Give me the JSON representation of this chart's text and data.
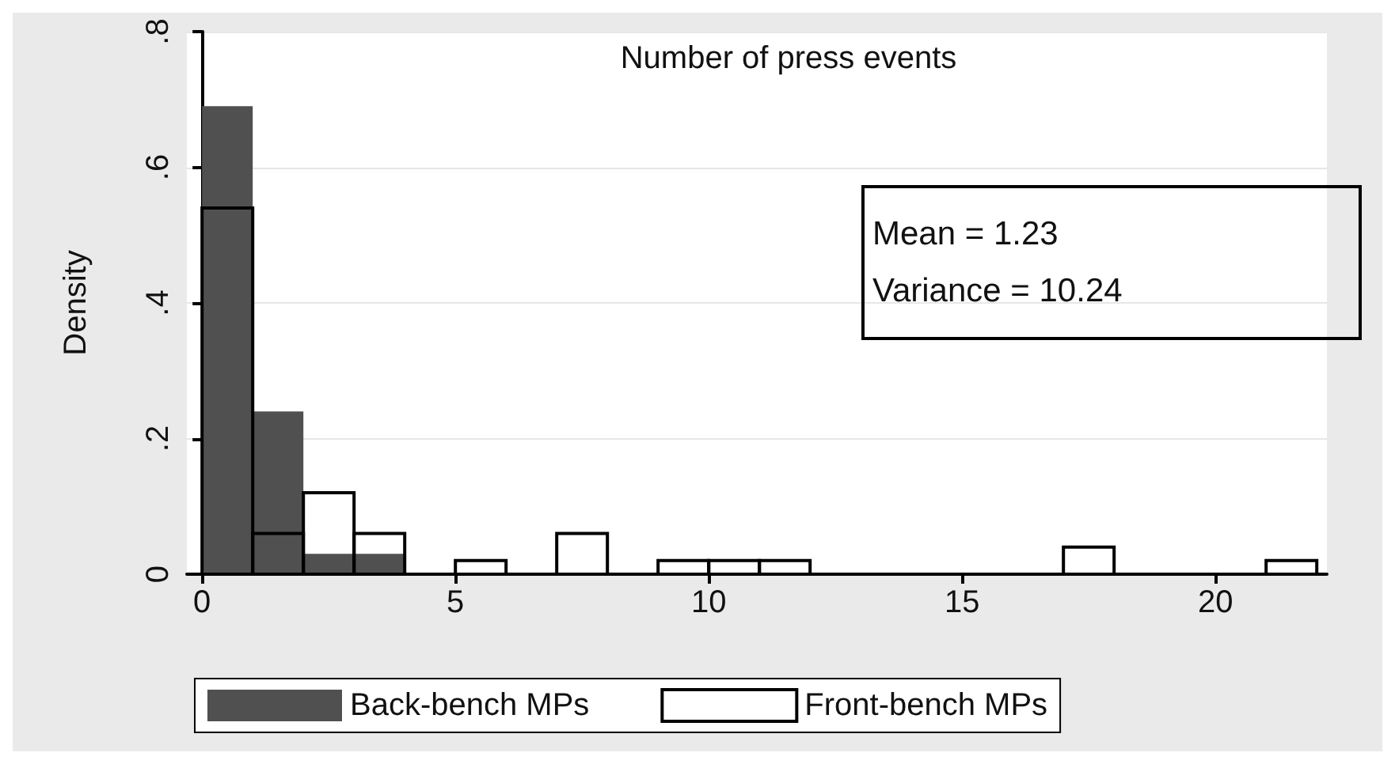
{
  "chart_data": {
    "type": "histogram",
    "title": "Number of press events",
    "ylabel": "Density",
    "bins": [
      0,
      1,
      2,
      3,
      4,
      5,
      6,
      7,
      8,
      9,
      10,
      11,
      12,
      13,
      14,
      15,
      16,
      17,
      18,
      19,
      20,
      21,
      22
    ],
    "series": [
      {
        "name": "Back-bench MPs",
        "color": "#505050",
        "values": [
          0.69,
          0.24,
          0.03,
          0.03,
          0,
          0,
          0,
          0,
          0,
          0,
          0,
          0,
          0,
          0,
          0,
          0,
          0,
          0,
          0,
          0,
          0,
          0
        ]
      },
      {
        "name": "Front-bench MPs",
        "color": "#000000",
        "values": [
          0.54,
          0.06,
          0.12,
          0.06,
          0,
          0.02,
          0,
          0.06,
          0,
          0.02,
          0.02,
          0.02,
          0,
          0,
          0,
          0,
          0,
          0.04,
          0,
          0,
          0,
          0.02
        ]
      }
    ],
    "xlim": [
      -0.3,
      22.2
    ],
    "xticks": [
      0,
      5,
      10,
      15,
      20
    ],
    "ylim": [
      0,
      0.8
    ],
    "yticks": [
      0,
      {
        "value": 0.2,
        "label": ".2"
      },
      {
        "value": 0.4,
        "label": ".4"
      },
      {
        "value": 0.6,
        "label": ".6"
      },
      {
        "value": 0.8,
        "label": ".8"
      }
    ],
    "grid": "y",
    "legend": "bottom",
    "annotations": [
      "Mean = 1.23",
      "Variance = 10.24"
    ]
  }
}
